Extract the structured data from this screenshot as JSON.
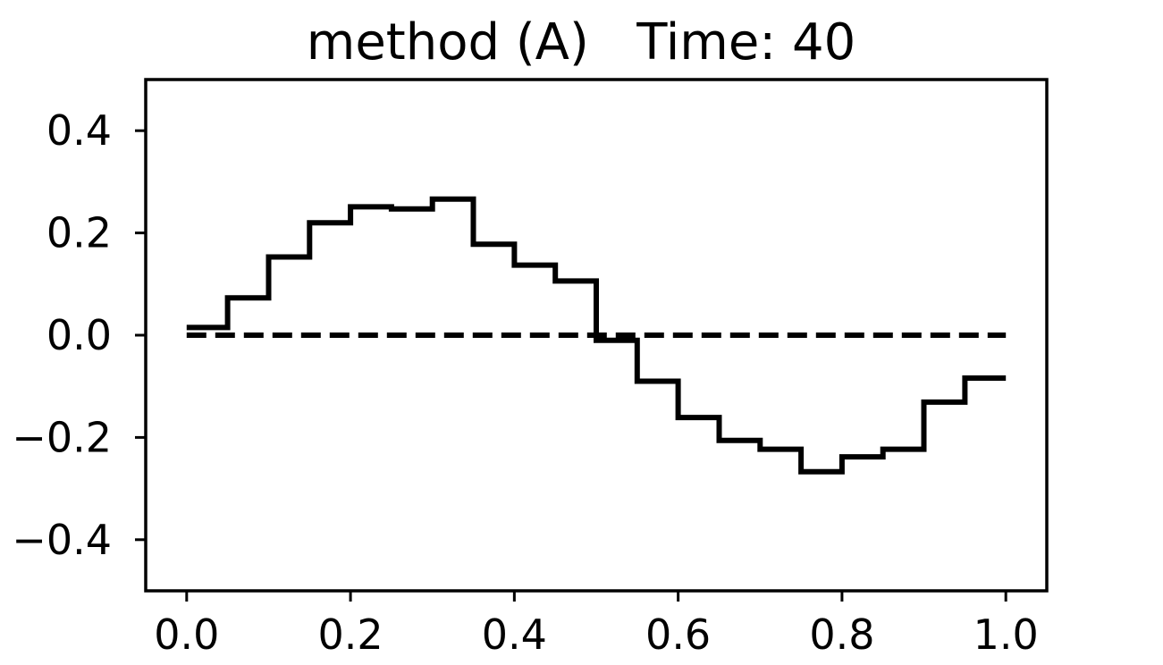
{
  "chart_data": {
    "type": "line",
    "title": "method (A)   Time: 40",
    "xlabel": "",
    "ylabel": "",
    "xlim": [
      -0.05,
      1.05
    ],
    "ylim": [
      -0.5,
      0.5
    ],
    "grid": false,
    "x_ticks": [
      0.0,
      0.2,
      0.4,
      0.6,
      0.8,
      1.0
    ],
    "x_tick_labels": [
      "0.0",
      "0.2",
      "0.4",
      "0.6",
      "0.8",
      "1.0"
    ],
    "y_ticks": [
      0.4,
      0.2,
      0.0,
      -0.2,
      -0.4
    ],
    "y_tick_labels": [
      "0.4",
      "0.2",
      "0.0",
      "−0.2",
      "−0.4"
    ],
    "series": [
      {
        "style": "solid-step",
        "color": "#000000",
        "x": [
          0.0,
          0.05,
          0.05,
          0.1,
          0.1,
          0.15,
          0.15,
          0.2,
          0.2,
          0.25,
          0.25,
          0.3,
          0.3,
          0.35,
          0.35,
          0.4,
          0.4,
          0.45,
          0.45,
          0.5,
          0.5,
          0.55,
          0.55,
          0.6,
          0.6,
          0.65,
          0.65,
          0.7,
          0.7,
          0.75,
          0.75,
          0.8,
          0.8,
          0.85,
          0.85,
          0.9,
          0.9,
          0.95,
          0.95,
          1.0
        ],
        "y": [
          0.015,
          0.015,
          0.073,
          0.073,
          0.153,
          0.153,
          0.22,
          0.22,
          0.251,
          0.251,
          0.247,
          0.247,
          0.266,
          0.266,
          0.178,
          0.178,
          0.137,
          0.137,
          0.106,
          0.106,
          -0.01,
          -0.01,
          -0.09,
          -0.09,
          -0.161,
          -0.161,
          -0.206,
          -0.206,
          -0.223,
          -0.223,
          -0.267,
          -0.267,
          -0.238,
          -0.238,
          -0.223,
          -0.223,
          -0.131,
          -0.131,
          -0.084,
          -0.084
        ]
      },
      {
        "style": "dashed",
        "color": "#000000",
        "x": [
          0.0,
          1.0
        ],
        "y": [
          0.0,
          0.0
        ]
      }
    ]
  }
}
